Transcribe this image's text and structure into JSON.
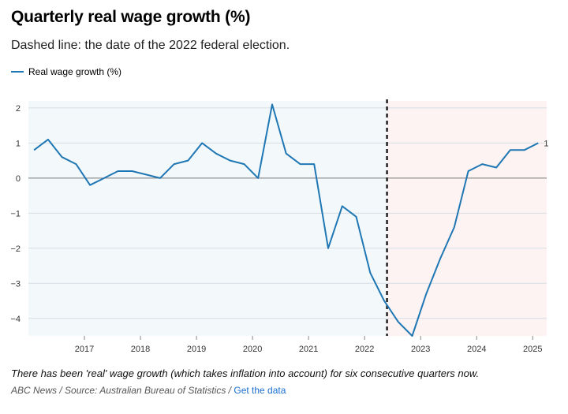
{
  "header": {
    "title": "Quarterly real wage growth (%)",
    "subtitle": "Dashed line: the date of the 2022 federal election."
  },
  "footer": {
    "note": "There has been 'real' wage growth (which takes inflation into account) for six consecutive quarters now.",
    "source": "ABC News / Source: Australian Bureau of Statistics /",
    "link_label": "Get the data"
  },
  "colors": {
    "line": "#1f77b4",
    "before_bg": "#f3f8fb",
    "after_bg": "#fdf3f3",
    "zero_line": "#777777",
    "grid": "#d6dde3",
    "election_line": "#222222"
  },
  "chart_data": {
    "type": "line",
    "title": "Quarterly real wage growth (%)",
    "xlabel": "",
    "ylabel": "",
    "ylim": [
      -4.5,
      2.2
    ],
    "xlim": [
      2016.0,
      2025.25
    ],
    "yticks": [
      2,
      1,
      0,
      -1,
      -2,
      -3,
      -4
    ],
    "xticks": [
      2017,
      2018,
      2019,
      2020,
      2021,
      2022,
      2023,
      2024,
      2025
    ],
    "grid": true,
    "legend": "top-left",
    "election_x": 2022.4,
    "end_label": "1",
    "series": [
      {
        "name": "Real wage growth (%)",
        "x": [
          2016.1,
          2016.35,
          2016.6,
          2016.85,
          2017.1,
          2017.35,
          2017.6,
          2017.85,
          2018.1,
          2018.35,
          2018.6,
          2018.85,
          2019.1,
          2019.35,
          2019.6,
          2019.85,
          2020.1,
          2020.35,
          2020.6,
          2020.85,
          2021.1,
          2021.35,
          2021.6,
          2021.85,
          2022.1,
          2022.35,
          2022.6,
          2022.85,
          2023.1,
          2023.35,
          2023.6,
          2023.85,
          2024.1,
          2024.35,
          2024.6,
          2024.85,
          2025.1
        ],
        "values": [
          0.8,
          1.1,
          0.6,
          0.4,
          -0.2,
          0.0,
          0.2,
          0.2,
          0.1,
          0.0,
          0.4,
          0.5,
          1.0,
          0.7,
          0.5,
          0.4,
          0.0,
          2.1,
          0.7,
          0.4,
          0.4,
          -2.0,
          -0.8,
          -1.1,
          -2.7,
          -3.5,
          -4.1,
          -4.5,
          -3.3,
          -2.3,
          -1.4,
          0.2,
          0.4,
          0.3,
          0.8,
          0.8,
          1.0
        ]
      }
    ]
  }
}
